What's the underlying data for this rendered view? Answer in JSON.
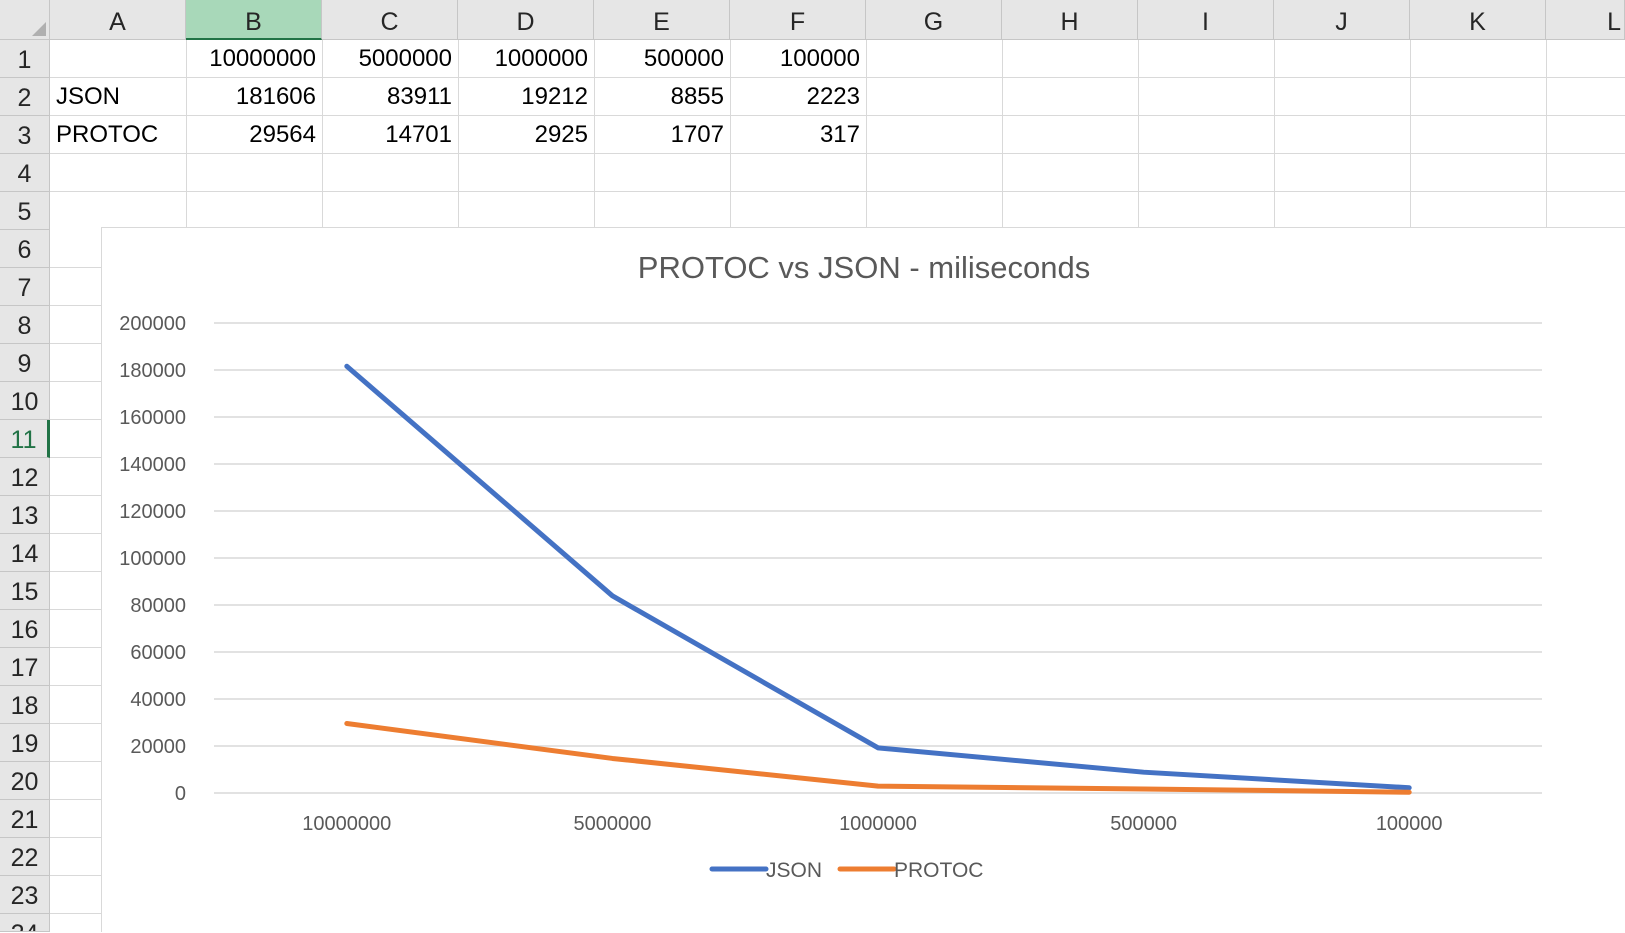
{
  "columns": [
    "A",
    "B",
    "C",
    "D",
    "E",
    "F",
    "G",
    "H",
    "I",
    "J",
    "K",
    "L"
  ],
  "selected_column": "B",
  "rows": [
    "1",
    "2",
    "3",
    "4",
    "5",
    "6",
    "7",
    "8",
    "9",
    "10",
    "11",
    "12",
    "13",
    "14",
    "15",
    "16",
    "17",
    "18",
    "19",
    "20",
    "21",
    "22",
    "23",
    "24"
  ],
  "active_row": "11",
  "cells": {
    "row1": [
      "",
      "10000000",
      "5000000",
      "1000000",
      "500000",
      "100000"
    ],
    "row2": [
      "JSON",
      "181606",
      "83911",
      "19212",
      "8855",
      "2223"
    ],
    "row3": [
      "PROTOC",
      "29564",
      "14701",
      "2925",
      "1707",
      "317"
    ]
  },
  "chart_data": {
    "type": "line",
    "title": "PROTOC vs JSON - miliseconds",
    "categories": [
      "10000000",
      "5000000",
      "1000000",
      "500000",
      "100000"
    ],
    "series": [
      {
        "name": "JSON",
        "values": [
          181606,
          83911,
          19212,
          8855,
          2223
        ],
        "color": "#4472C4"
      },
      {
        "name": "PROTOC",
        "values": [
          29564,
          14701,
          2925,
          1707,
          317
        ],
        "color": "#ED7D31"
      }
    ],
    "ylim": [
      0,
      200000
    ],
    "yticks": [
      "200000",
      "180000",
      "160000",
      "140000",
      "120000",
      "100000",
      "80000",
      "60000",
      "40000",
      "20000",
      "0"
    ],
    "grid": true,
    "legend": "bottom"
  }
}
